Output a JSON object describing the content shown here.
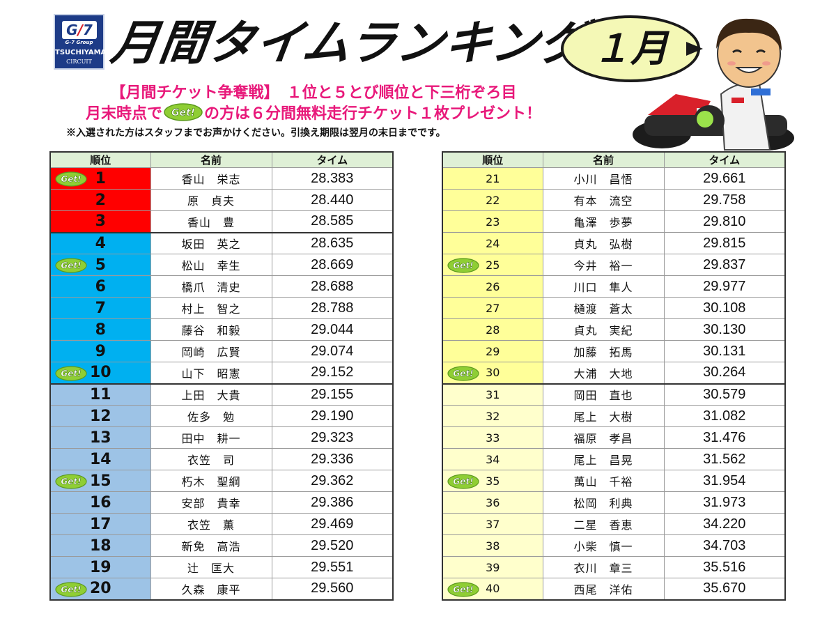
{
  "brand": {
    "mark_g": "G",
    "mark_slash": "/",
    "mark_7": "7",
    "group": "G-7 Group",
    "name": "TSUCHIYAMA",
    "circuit": "CIRCUIT"
  },
  "title": "月間タイムランキング",
  "month": "１月",
  "promo": {
    "line1": "【月間チケット争奪戦】　１位と５とび順位と下三桁ぞろ目",
    "line2_before": "月末時点で",
    "line2_after": "の方は６分間無料走行チケット１枚プレゼント！",
    "note": "※入選された方はスタッフまでお声かけください。引換え期限は翌月の末日までです。"
  },
  "get_label": "Get!",
  "table_headers": {
    "rank": "順位",
    "name": "名前",
    "time": "タイム"
  },
  "colors": {
    "gold": "#ff0000",
    "top10": "#00b0f0",
    "top20": "#9dc3e6",
    "top30": "#ffff99",
    "top40": "#ffffcc",
    "header": "#dff0d6",
    "get_badge": "#8fce34",
    "promo_text": "#e8187a"
  },
  "left_rows": [
    {
      "rank": "1",
      "name": "香山　栄志",
      "time": "28.383",
      "get": true
    },
    {
      "rank": "2",
      "name": "原　貞夫",
      "time": "28.440",
      "get": false
    },
    {
      "rank": "3",
      "name": "香山　豊",
      "time": "28.585",
      "get": false
    },
    {
      "rank": "4",
      "name": "坂田　英之",
      "time": "28.635",
      "get": false
    },
    {
      "rank": "5",
      "name": "松山　幸生",
      "time": "28.669",
      "get": true
    },
    {
      "rank": "6",
      "name": "橋爪　清史",
      "time": "28.688",
      "get": false
    },
    {
      "rank": "7",
      "name": "村上　智之",
      "time": "28.788",
      "get": false
    },
    {
      "rank": "8",
      "name": "藤谷　和毅",
      "time": "29.044",
      "get": false
    },
    {
      "rank": "9",
      "name": "岡崎　広賢",
      "time": "29.074",
      "get": false
    },
    {
      "rank": "10",
      "name": "山下　昭憲",
      "time": "29.152",
      "get": true
    },
    {
      "rank": "11",
      "name": "上田　大貴",
      "time": "29.155",
      "get": false
    },
    {
      "rank": "12",
      "name": "佐多　勉",
      "time": "29.190",
      "get": false
    },
    {
      "rank": "13",
      "name": "田中　耕一",
      "time": "29.323",
      "get": false
    },
    {
      "rank": "14",
      "name": "衣笠　司",
      "time": "29.336",
      "get": false
    },
    {
      "rank": "15",
      "name": "朽木　聖綱",
      "time": "29.362",
      "get": true
    },
    {
      "rank": "16",
      "name": "安部　貴幸",
      "time": "29.386",
      "get": false
    },
    {
      "rank": "17",
      "name": "衣笠　薫",
      "time": "29.469",
      "get": false
    },
    {
      "rank": "18",
      "name": "新免　高浩",
      "time": "29.520",
      "get": false
    },
    {
      "rank": "19",
      "name": "辻　匡大",
      "time": "29.551",
      "get": false
    },
    {
      "rank": "20",
      "name": "久森　康平",
      "time": "29.560",
      "get": true
    }
  ],
  "right_rows": [
    {
      "rank": "21",
      "name": "小川　昌悟",
      "time": "29.661",
      "get": false
    },
    {
      "rank": "22",
      "name": "有本　流空",
      "time": "29.758",
      "get": false
    },
    {
      "rank": "23",
      "name": "亀澤　歩夢",
      "time": "29.810",
      "get": false
    },
    {
      "rank": "24",
      "name": "貞丸　弘樹",
      "time": "29.815",
      "get": false
    },
    {
      "rank": "25",
      "name": "今井　裕一",
      "time": "29.837",
      "get": true
    },
    {
      "rank": "26",
      "name": "川口　隼人",
      "time": "29.977",
      "get": false
    },
    {
      "rank": "27",
      "name": "樋渡　蒼太",
      "time": "30.108",
      "get": false
    },
    {
      "rank": "28",
      "name": "貞丸　実紀",
      "time": "30.130",
      "get": false
    },
    {
      "rank": "29",
      "name": "加藤　拓馬",
      "time": "30.131",
      "get": false
    },
    {
      "rank": "30",
      "name": "大浦　大地",
      "time": "30.264",
      "get": true
    },
    {
      "rank": "31",
      "name": "岡田　直也",
      "time": "30.579",
      "get": false
    },
    {
      "rank": "32",
      "name": "尾上　大樹",
      "time": "31.082",
      "get": false
    },
    {
      "rank": "33",
      "name": "福原　孝昌",
      "time": "31.476",
      "get": false
    },
    {
      "rank": "34",
      "name": "尾上　昌晃",
      "time": "31.562",
      "get": false
    },
    {
      "rank": "35",
      "name": "萬山　千裕",
      "time": "31.954",
      "get": true
    },
    {
      "rank": "36",
      "name": "松岡　利典",
      "time": "31.973",
      "get": false
    },
    {
      "rank": "37",
      "name": "二星　香恵",
      "time": "34.220",
      "get": false
    },
    {
      "rank": "38",
      "name": "小柴　慎一",
      "time": "34.703",
      "get": false
    },
    {
      "rank": "39",
      "name": "衣川　章三",
      "time": "35.516",
      "get": false
    },
    {
      "rank": "40",
      "name": "西尾　洋佑",
      "time": "35.670",
      "get": true
    }
  ]
}
